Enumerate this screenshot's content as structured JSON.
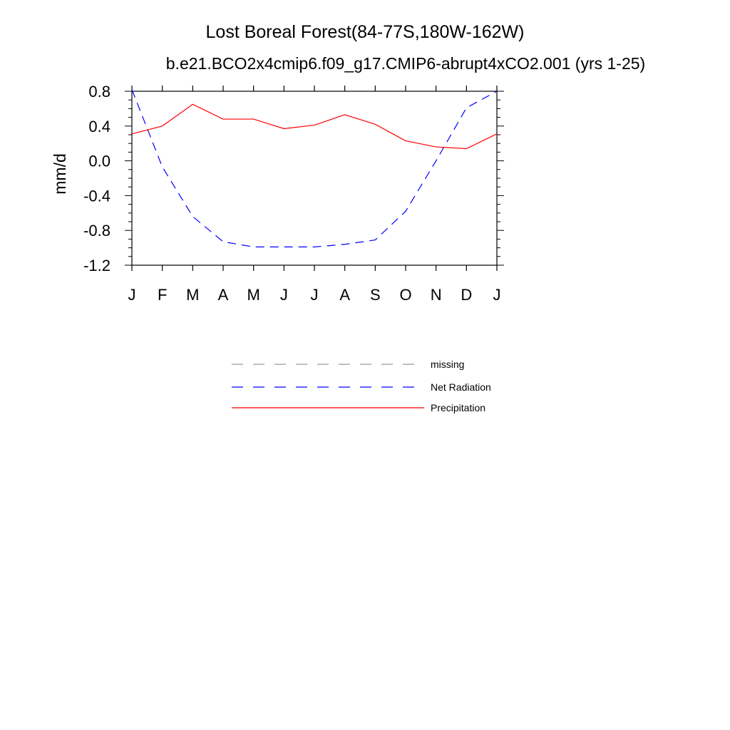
{
  "chart_data": {
    "type": "line",
    "title": "Lost Boreal Forest(84-77S,180W-162W)",
    "subtitle": "b.e21.BCO2x4cmip6.f09_g17.CMIP6-abrupt4xCO2.001 (yrs 1-25)",
    "xlabel": "",
    "ylabel": "mm/d",
    "categories": [
      "J",
      "F",
      "M",
      "A",
      "M",
      "J",
      "J",
      "A",
      "S",
      "O",
      "N",
      "D",
      "J"
    ],
    "ylim": [
      -1.2,
      0.8
    ],
    "yticks": [
      "0.8",
      "0.4",
      "0.0",
      "-0.4",
      "-0.8",
      "-1.2"
    ],
    "ytick_values": [
      0.8,
      0.4,
      0.0,
      -0.4,
      -0.8,
      -1.2
    ],
    "grid": false,
    "legend_position": "bottom",
    "series": [
      {
        "name": "Net Radiation",
        "color": "#0000ff",
        "style": "dashed",
        "values": [
          0.82,
          -0.07,
          -0.64,
          -0.93,
          -0.99,
          -0.99,
          -0.99,
          -0.96,
          -0.91,
          -0.58,
          0.0,
          0.61,
          0.8
        ]
      },
      {
        "name": "Precipitation",
        "color": "#ff0000",
        "style": "solid",
        "values": [
          0.31,
          0.4,
          0.65,
          0.48,
          0.48,
          0.37,
          0.41,
          0.53,
          0.42,
          0.23,
          0.16,
          0.14,
          0.31
        ]
      }
    ],
    "legend": [
      {
        "name": "missing",
        "color": "#999999",
        "style": "dashed"
      },
      {
        "name": "Net Radiation",
        "color": "#0000ff",
        "style": "dashed"
      },
      {
        "name": "Precipitation",
        "color": "#ff0000",
        "style": "solid"
      }
    ]
  }
}
